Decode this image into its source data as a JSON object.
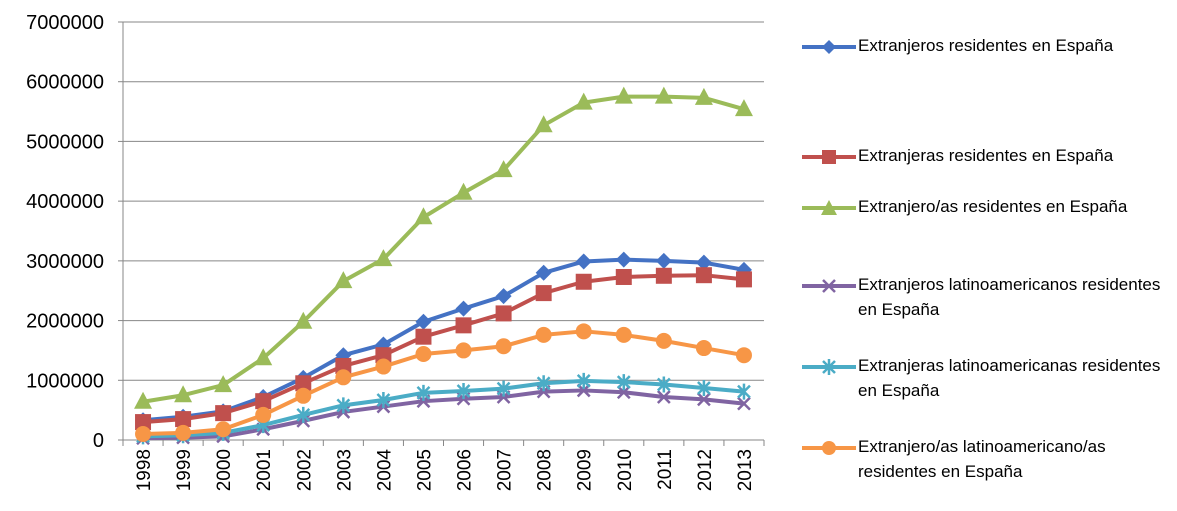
{
  "chart_data": {
    "type": "line",
    "categories": [
      "1998",
      "1999",
      "2000",
      "2001",
      "2002",
      "2003",
      "2004",
      "2005",
      "2006",
      "2007",
      "2008",
      "2009",
      "2010",
      "2011",
      "2012",
      "2013"
    ],
    "ylim": [
      0,
      7000000
    ],
    "yticks": [
      "0",
      "1000000",
      "2000000",
      "3000000",
      "4000000",
      "5000000",
      "6000000",
      "7000000"
    ],
    "grid": "horizontal",
    "legend_position": "right",
    "series": [
      {
        "name": "Extranjeros residentes en España",
        "color": "#4472c4",
        "marker": "diamond",
        "values": [
          330000,
          390000,
          480000,
          720000,
          1040000,
          1420000,
          1600000,
          1980000,
          2200000,
          2410000,
          2800000,
          2990000,
          3020000,
          3000000,
          2970000,
          2850000
        ]
      },
      {
        "name": "Extranjeras residentes en España",
        "color": "#c0504d",
        "marker": "square",
        "values": [
          300000,
          350000,
          450000,
          650000,
          950000,
          1240000,
          1420000,
          1730000,
          1920000,
          2120000,
          2460000,
          2650000,
          2730000,
          2750000,
          2760000,
          2690000
        ]
      },
      {
        "name": "Extranjero/as residentes en España",
        "color": "#9bbb59",
        "marker": "triangle",
        "values": [
          640000,
          750000,
          920000,
          1370000,
          1980000,
          2660000,
          3030000,
          3730000,
          4140000,
          4520000,
          5270000,
          5650000,
          5750000,
          5750000,
          5730000,
          5540000
        ]
      },
      {
        "name": "Extranjeros latinoamericanos residentes en España",
        "color": "#8064a2",
        "marker": "x",
        "values": [
          30000,
          40000,
          60000,
          180000,
          320000,
          470000,
          560000,
          650000,
          690000,
          720000,
          810000,
          830000,
          800000,
          720000,
          680000,
          610000
        ]
      },
      {
        "name": "Extranjeras latinoamericanas residentes en España",
        "color": "#4bacc6",
        "marker": "star",
        "values": [
          60000,
          80000,
          120000,
          250000,
          420000,
          580000,
          670000,
          790000,
          820000,
          860000,
          950000,
          990000,
          970000,
          930000,
          870000,
          810000
        ]
      },
      {
        "name": "Extranjero/as latinoamericano/as residentes en España",
        "color": "#f79646",
        "marker": "circle",
        "values": [
          100000,
          120000,
          180000,
          420000,
          740000,
          1050000,
          1230000,
          1440000,
          1500000,
          1570000,
          1760000,
          1820000,
          1760000,
          1660000,
          1540000,
          1420000
        ]
      }
    ]
  }
}
